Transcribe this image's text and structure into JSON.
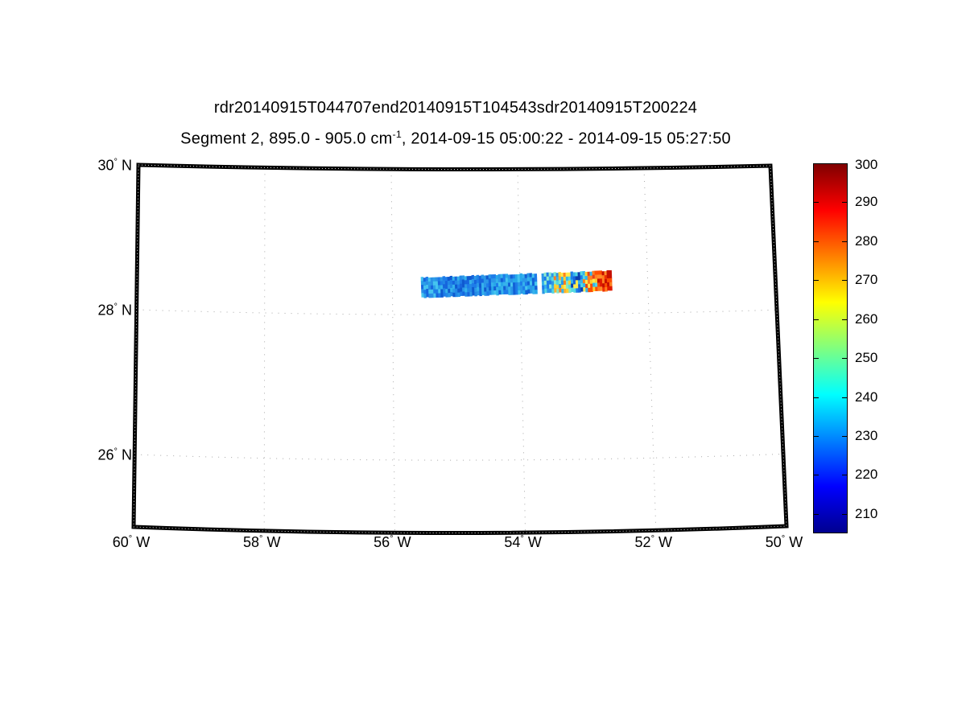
{
  "titles": {
    "line1": "rdr20140915T044707end20140915T104543sdr20140915T200224",
    "line2_prefix": "Segment 2, 895.0 - 905.0 cm",
    "line2_sup": "-1",
    "line2_suffix": ", 2014-09-15 05:00:22 - 2014-09-15 05:27:50"
  },
  "axes": {
    "degree_symbol": "°",
    "lat_ticks": [
      {
        "lat": 30,
        "num": "30",
        "hemi": "N"
      },
      {
        "lat": 28,
        "num": "28",
        "hemi": "N"
      },
      {
        "lat": 26,
        "num": "26",
        "hemi": "N"
      }
    ],
    "lon_ticks": [
      {
        "lon": -60,
        "num": "60",
        "hemi": "W"
      },
      {
        "lon": -58,
        "num": "58",
        "hemi": "W"
      },
      {
        "lon": -56,
        "num": "56",
        "hemi": "W"
      },
      {
        "lon": -54,
        "num": "54",
        "hemi": "W"
      },
      {
        "lon": -52,
        "num": "52",
        "hemi": "W"
      },
      {
        "lon": -50,
        "num": "50",
        "hemi": "W"
      }
    ],
    "grid_parallels": [
      28,
      26
    ],
    "grid_meridians": [
      -58,
      -56,
      -54,
      -52
    ],
    "gridline_color": "#a8a8a8",
    "border_color": "#000000"
  },
  "colorbar": {
    "min": 205,
    "max": 300,
    "ticks": [
      {
        "value": 300,
        "label": "300"
      },
      {
        "value": 290,
        "label": "290"
      },
      {
        "value": 280,
        "label": "280"
      },
      {
        "value": 270,
        "label": "270"
      },
      {
        "value": 260,
        "label": "260"
      },
      {
        "value": 250,
        "label": "250"
      },
      {
        "value": 240,
        "label": "240"
      },
      {
        "value": 230,
        "label": "230"
      },
      {
        "value": 220,
        "label": "220"
      },
      {
        "value": 210,
        "label": "210"
      }
    ],
    "colormap": "jet",
    "gradient": [
      {
        "stop": 0.0,
        "color": "#00008f"
      },
      {
        "stop": 0.125,
        "color": "#0000ff"
      },
      {
        "stop": 0.375,
        "color": "#00ffff"
      },
      {
        "stop": 0.625,
        "color": "#ffff00"
      },
      {
        "stop": 0.875,
        "color": "#ff0000"
      },
      {
        "stop": 1.0,
        "color": "#800000"
      }
    ]
  },
  "chart_data": {
    "type": "heatmap",
    "title": "rdr20140915T044707end20140915T104543sdr20140915T200224",
    "subtitle": "Segment 2, 895.0 - 905.0 cm-1, 2014-09-15 05:00:22 - 2014-09-15 05:27:50",
    "projection": "curved map frame, grid dotted",
    "lon_range": [
      -60,
      -50
    ],
    "lat_range": [
      25,
      30
    ],
    "lon_tick_values": [
      -60,
      -58,
      -56,
      -54,
      -52,
      -50
    ],
    "lat_tick_values": [
      30,
      28,
      26
    ],
    "colorbar_range": [
      205,
      300
    ],
    "colorbar_ticks": [
      210,
      220,
      230,
      240,
      250,
      260,
      270,
      280,
      290,
      300
    ],
    "swath": {
      "lon_start": -55.55,
      "lon_end": -52.58,
      "lat_start": 28.37,
      "lat_end": 28.45,
      "thickness_px": 25,
      "gap_fraction": [
        0.605,
        0.628
      ],
      "segments": [
        {
          "from": 0.0,
          "to": 0.1,
          "approx_values": [
            225,
            240
          ],
          "palette": [
            "#2b8fe6",
            "#1d7ce9",
            "#45c4ef",
            "#1666dd",
            "#2b9fe8"
          ]
        },
        {
          "from": 0.1,
          "to": 0.36,
          "approx_values": [
            222,
            238
          ],
          "palette": [
            "#1d7ce9",
            "#2b97e8",
            "#1666dd",
            "#35b2ec",
            "#0f5ad0",
            "#2288e6"
          ]
        },
        {
          "from": 0.36,
          "to": 0.605,
          "approx_values": [
            228,
            242
          ],
          "palette": [
            "#2b97e8",
            "#45c4ef",
            "#1d7ce9",
            "#27a7ea",
            "#1261d6",
            "#35b2ec"
          ]
        },
        {
          "from": 0.628,
          "to": 0.68,
          "approx_values": [
            235,
            245
          ],
          "palette": [
            "#45c4ef",
            "#35b2ec",
            "#52d8e2",
            "#1d7ce9",
            "#8feccc",
            "#2b97e8"
          ]
        },
        {
          "from": 0.68,
          "to": 0.78,
          "approx_values": [
            240,
            270
          ],
          "palette": [
            "#ffe94d",
            "#ffb02e",
            "#52d8e2",
            "#35b4ec",
            "#ff7f1f",
            "#ffd02e",
            "#7fe8c8",
            "#2b97e8"
          ]
        },
        {
          "from": 0.78,
          "to": 0.84,
          "approx_values": [
            215,
            240
          ],
          "palette": [
            "#0b3fb0",
            "#1666dd",
            "#35b4ec",
            "#52d8e2",
            "#ffe94d",
            "#1d7ce9"
          ]
        },
        {
          "from": 0.84,
          "to": 0.92,
          "approx_values": [
            250,
            275
          ],
          "palette": [
            "#ffd02e",
            "#ff7f1f",
            "#52d8e2",
            "#ffe94d",
            "#ff4d00",
            "#35b4ec",
            "#e8401a"
          ]
        },
        {
          "from": 0.92,
          "to": 1.0,
          "approx_values": [
            285,
            300
          ],
          "palette": [
            "#e01a00",
            "#ff4d00",
            "#c61000",
            "#ff7f1f",
            "#ee2f00",
            "#ff8c2a"
          ]
        }
      ]
    }
  }
}
